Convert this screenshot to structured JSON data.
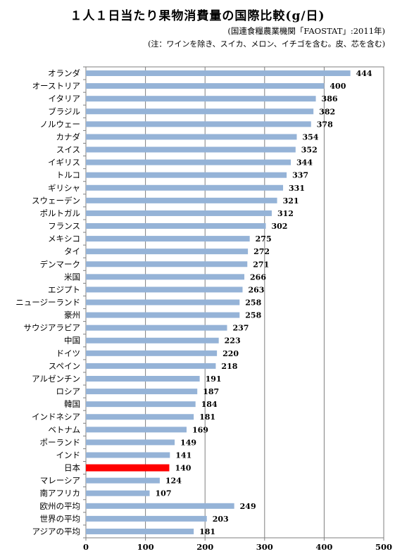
{
  "title": "１人１日当たり果物消費量の国際比較(g/日)",
  "source": "(国連食糧農業機関「FAOSTAT」:2011年)",
  "note": "(注：ワインを除き、スイカ、メロン、イチゴを含む。皮、芯を含む)",
  "chart_data": {
    "type": "bar",
    "orientation": "horizontal",
    "categories": [
      "オランダ",
      "オーストリア",
      "イタリア",
      "ブラジル",
      "ノルウェー",
      "カナダ",
      "スイス",
      "イギリス",
      "トルコ",
      "ギリシャ",
      "スウェーデン",
      "ポルトガル",
      "フランス",
      "メキシコ",
      "タイ",
      "デンマーク",
      "米国",
      "エジプト",
      "ニュージーランド",
      "豪州",
      "サウジアラビア",
      "中国",
      "ドイツ",
      "スペイン",
      "アルゼンチン",
      "ロシア",
      "韓国",
      "インドネシア",
      "ベトナム",
      "ポーランド",
      "インド",
      "日本",
      "マレーシア",
      "南アフリカ",
      "欧州の平均",
      "世界の平均",
      "アジアの平均"
    ],
    "values": [
      444,
      400,
      386,
      382,
      378,
      354,
      352,
      344,
      337,
      331,
      321,
      312,
      302,
      275,
      272,
      271,
      266,
      263,
      258,
      258,
      237,
      223,
      220,
      218,
      191,
      187,
      184,
      181,
      169,
      149,
      141,
      140,
      124,
      107,
      249,
      203,
      181
    ],
    "xlim": [
      0,
      500
    ],
    "xticks": [
      0,
      100,
      200,
      300,
      400,
      500
    ],
    "grid": true,
    "bar_color": "#95b3d7",
    "highlight_category": "日本",
    "highlight_color": "#ff0000",
    "xlabel": "",
    "ylabel": ""
  }
}
